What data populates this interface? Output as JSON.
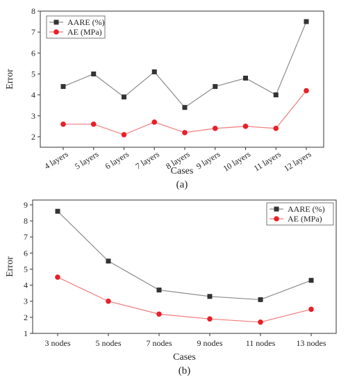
{
  "chart_data": [
    {
      "type": "line",
      "panel_label": "(a)",
      "xlabel": "Cases",
      "ylabel": "Error",
      "categories": [
        "4 layers",
        "5 layers",
        "6 layers",
        "7 layers",
        "8 layers",
        "9 layers",
        "10 layers",
        "11 layers",
        "12 layers"
      ],
      "ylim": [
        1.5,
        8
      ],
      "yticks": [
        2,
        3,
        4,
        5,
        6,
        7,
        8
      ],
      "legend_position": "top-left",
      "series": [
        {
          "name": "AARE (%)",
          "marker": "square",
          "color": "#333333",
          "line_color": "#8a8a8a",
          "values": [
            4.4,
            5.0,
            3.9,
            5.1,
            3.4,
            4.4,
            4.8,
            4.0,
            7.5
          ]
        },
        {
          "name": "AE (MPa)",
          "marker": "circle",
          "color": "#e8202a",
          "line_color": "#f07b7b",
          "values": [
            2.6,
            2.6,
            2.1,
            2.7,
            2.2,
            2.4,
            2.5,
            2.4,
            4.2
          ]
        }
      ]
    },
    {
      "type": "line",
      "panel_label": "(b)",
      "xlabel": "Cases",
      "ylabel": "Error",
      "categories": [
        "3 nodes",
        "5 nodes",
        "7 nodes",
        "9 nodes",
        "11 nodes",
        "13 nodes"
      ],
      "ylim": [
        1,
        9.3
      ],
      "yticks": [
        1,
        2,
        3,
        4,
        5,
        6,
        7,
        8,
        9
      ],
      "legend_position": "top-right",
      "series": [
        {
          "name": "AARE (%)",
          "marker": "square",
          "color": "#333333",
          "line_color": "#8a8a8a",
          "values": [
            8.6,
            5.5,
            3.7,
            3.3,
            3.1,
            4.3
          ]
        },
        {
          "name": "AE (MPa)",
          "marker": "circle",
          "color": "#e8202a",
          "line_color": "#f07b7b",
          "values": [
            4.5,
            3.0,
            2.2,
            1.9,
            1.7,
            2.5
          ]
        }
      ]
    }
  ]
}
